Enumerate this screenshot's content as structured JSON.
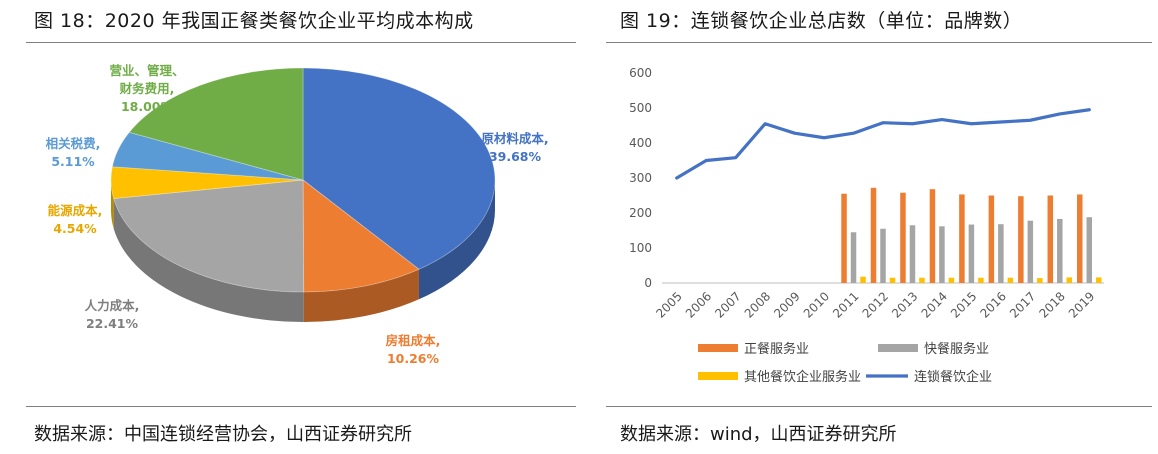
{
  "left": {
    "title": "图 18：2020 年我国正餐类餐饮企业平均成本构成",
    "source": "数据来源：中国连锁经营协会，山西证券研究所"
  },
  "right": {
    "title": "图 19：连锁餐饮企业总店数（单位：品牌数）",
    "source": "数据来源：wind，山西证券研究所"
  },
  "chart_data": [
    {
      "type": "pie",
      "slices": [
        {
          "label": "原材料成本,",
          "value": 39.68,
          "value_label": "39.68%",
          "color": "#4472c4"
        },
        {
          "label": "房租成本,",
          "value": 10.26,
          "value_label": "10.26%",
          "color": "#ed7d31"
        },
        {
          "label": "人力成本,",
          "value": 22.41,
          "value_label": "22.41%",
          "color": "#a5a5a5"
        },
        {
          "label": "能源成本,",
          "value": 4.54,
          "value_label": "4.54%",
          "color": "#ffc000"
        },
        {
          "label": "相关税费,",
          "value": 5.11,
          "value_label": "5.11%",
          "color": "#5b9bd5"
        },
        {
          "label": "营业、管理、财务费用,",
          "label_lines": [
            "营业、管理、",
            "财务费用,"
          ],
          "value": 18.0,
          "value_label": "18.00%",
          "color": "#70ad47"
        }
      ]
    },
    {
      "type": "bar",
      "categories": [
        "2005",
        "2006",
        "2007",
        "2008",
        "2009",
        "2010",
        "2011",
        "2012",
        "2013",
        "2014",
        "2015",
        "2016",
        "2017",
        "2018",
        "2019"
      ],
      "y_ticks": [
        "0",
        "100",
        "200",
        "300",
        "400",
        "500",
        "600"
      ],
      "ylim": [
        0,
        600
      ],
      "series": [
        {
          "name": "正餐服务业",
          "type": "bar",
          "color": "#ed7d31",
          "values": [
            null,
            null,
            null,
            null,
            null,
            null,
            255,
            272,
            258,
            268,
            253,
            250,
            248,
            250,
            253
          ]
        },
        {
          "name": "快餐服务业",
          "type": "bar",
          "color": "#a5a5a5",
          "values": [
            null,
            null,
            null,
            null,
            null,
            null,
            145,
            155,
            165,
            162,
            167,
            168,
            178,
            183,
            188
          ]
        },
        {
          "name": "其他餐饮企业服务业",
          "type": "bar",
          "color": "#ffc000",
          "values": [
            null,
            null,
            null,
            null,
            null,
            null,
            18,
            15,
            15,
            15,
            15,
            15,
            14,
            16,
            16
          ]
        },
        {
          "name": "连锁餐饮企业",
          "type": "line",
          "color": "#4472c4",
          "values": [
            300,
            350,
            358,
            455,
            428,
            415,
            428,
            458,
            455,
            467,
            455,
            460,
            465,
            483,
            495
          ]
        }
      ]
    }
  ]
}
